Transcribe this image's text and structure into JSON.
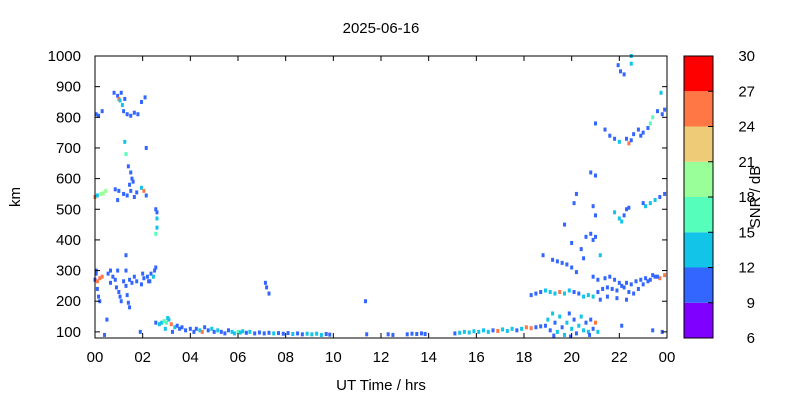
{
  "chart_data": {
    "type": "scatter",
    "title": "2025-06-16",
    "xlabel": "UT Time / hrs",
    "ylabel": "km",
    "xlim": [
      0,
      24
    ],
    "ylim": [
      80,
      1000
    ],
    "x_ticks": [
      "00",
      "02",
      "04",
      "06",
      "08",
      "10",
      "12",
      "14",
      "16",
      "18",
      "20",
      "22",
      "00"
    ],
    "y_ticks": [
      "100",
      "200",
      "300",
      "400",
      "500",
      "600",
      "700",
      "800",
      "900",
      "1000"
    ],
    "colorbar": {
      "label": "SNR / dB",
      "range": [
        6,
        30
      ],
      "ticks": [
        "6",
        "9",
        "12",
        "15",
        "18",
        "21",
        "24",
        "27",
        "30"
      ],
      "colors": [
        "#7f00ff",
        "#3366ff",
        "#12c4e8",
        "#55ffbb",
        "#99ff99",
        "#eecc77",
        "#ff7744",
        "#ff0000"
      ]
    },
    "points": [
      [
        0.0,
        540,
        26
      ],
      [
        0.1,
        545,
        12
      ],
      [
        0.25,
        550,
        18
      ],
      [
        0.45,
        560,
        18
      ],
      [
        0.35,
        552,
        20
      ],
      [
        0.05,
        810,
        10
      ],
      [
        0.15,
        805,
        10
      ],
      [
        0.3,
        820,
        10
      ],
      [
        0.8,
        880,
        10
      ],
      [
        0.95,
        870,
        10
      ],
      [
        1.0,
        860,
        26
      ],
      [
        1.05,
        855,
        12
      ],
      [
        1.15,
        840,
        12
      ],
      [
        1.2,
        820,
        10
      ],
      [
        1.35,
        810,
        10
      ],
      [
        1.5,
        805,
        10
      ],
      [
        1.65,
        815,
        10
      ],
      [
        1.8,
        810,
        10
      ],
      [
        1.95,
        850,
        10
      ],
      [
        2.1,
        865,
        10
      ],
      [
        1.1,
        880,
        10
      ],
      [
        1.25,
        860,
        10
      ],
      [
        1.25,
        720,
        14
      ],
      [
        1.3,
        680,
        16
      ],
      [
        1.4,
        640,
        10
      ],
      [
        1.5,
        620,
        10
      ],
      [
        1.55,
        600,
        10
      ],
      [
        2.15,
        700,
        10
      ],
      [
        0.85,
        565,
        10
      ],
      [
        1.0,
        560,
        10
      ],
      [
        1.2,
        550,
        10
      ],
      [
        1.35,
        545,
        10
      ],
      [
        1.5,
        560,
        10
      ],
      [
        1.65,
        540,
        10
      ],
      [
        1.75,
        555,
        10
      ],
      [
        1.95,
        570,
        14
      ],
      [
        2.05,
        560,
        26
      ],
      [
        2.15,
        545,
        10
      ],
      [
        1.45,
        580,
        10
      ],
      [
        1.6,
        590,
        10
      ],
      [
        0.95,
        530,
        10
      ],
      [
        2.55,
        500,
        10
      ],
      [
        2.6,
        470,
        14
      ],
      [
        2.6,
        440,
        12
      ],
      [
        2.55,
        420,
        16
      ],
      [
        2.6,
        490,
        10
      ],
      [
        0.0,
        270,
        10
      ],
      [
        0.05,
        290,
        10
      ],
      [
        0.1,
        265,
        26
      ],
      [
        0.2,
        275,
        26
      ],
      [
        0.3,
        280,
        26
      ],
      [
        0.15,
        215,
        10
      ],
      [
        0.2,
        200,
        10
      ],
      [
        0.1,
        240,
        10
      ],
      [
        0.05,
        300,
        10
      ],
      [
        0.55,
        290,
        10
      ],
      [
        0.65,
        300,
        10
      ],
      [
        0.75,
        280,
        10
      ],
      [
        0.85,
        270,
        10
      ],
      [
        0.95,
        300,
        10
      ],
      [
        0.65,
        260,
        10
      ],
      [
        0.9,
        245,
        10
      ],
      [
        1.0,
        230,
        10
      ],
      [
        1.05,
        215,
        10
      ],
      [
        1.1,
        200,
        10
      ],
      [
        1.2,
        265,
        10
      ],
      [
        1.3,
        250,
        10
      ],
      [
        1.35,
        220,
        10
      ],
      [
        1.4,
        195,
        10
      ],
      [
        1.45,
        180,
        10
      ],
      [
        1.3,
        350,
        10
      ],
      [
        1.3,
        300,
        10
      ],
      [
        1.45,
        270,
        10
      ],
      [
        1.55,
        260,
        10
      ],
      [
        1.65,
        280,
        10
      ],
      [
        1.75,
        265,
        10
      ],
      [
        1.95,
        255,
        10
      ],
      [
        2.05,
        275,
        10
      ],
      [
        2.25,
        265,
        10
      ],
      [
        2.35,
        290,
        10
      ],
      [
        2.45,
        280,
        14
      ],
      [
        2.5,
        300,
        10
      ],
      [
        2.55,
        310,
        10
      ],
      [
        2.2,
        280,
        10
      ],
      [
        2.3,
        265,
        10
      ],
      [
        2.0,
        290,
        10
      ],
      [
        0.5,
        140,
        10
      ],
      [
        0.4,
        90,
        10
      ],
      [
        1.9,
        100,
        10
      ],
      [
        2.55,
        130,
        10
      ],
      [
        2.7,
        125,
        14
      ],
      [
        2.8,
        130,
        14
      ],
      [
        2.9,
        135,
        16
      ],
      [
        3.0,
        130,
        16
      ],
      [
        3.1,
        140,
        14
      ],
      [
        3.2,
        125,
        26
      ],
      [
        3.35,
        115,
        14
      ],
      [
        3.45,
        120,
        10
      ],
      [
        3.05,
        145,
        14
      ],
      [
        2.95,
        110,
        14
      ],
      [
        3.25,
        100,
        10
      ],
      [
        3.55,
        110,
        10
      ],
      [
        3.65,
        115,
        10
      ],
      [
        3.8,
        105,
        10
      ],
      [
        4.0,
        110,
        10
      ],
      [
        4.15,
        100,
        10
      ],
      [
        4.25,
        110,
        10
      ],
      [
        4.4,
        105,
        14
      ],
      [
        4.5,
        100,
        26
      ],
      [
        4.6,
        115,
        10
      ],
      [
        4.75,
        105,
        10
      ],
      [
        4.9,
        110,
        12
      ],
      [
        5.0,
        100,
        10
      ],
      [
        5.15,
        105,
        12
      ],
      [
        5.3,
        100,
        10
      ],
      [
        5.45,
        95,
        10
      ],
      [
        5.6,
        105,
        10
      ],
      [
        5.75,
        100,
        14
      ],
      [
        5.85,
        95,
        12
      ],
      [
        6.0,
        100,
        16
      ],
      [
        6.1,
        98,
        14
      ],
      [
        6.2,
        102,
        12
      ],
      [
        6.35,
        97,
        10
      ],
      [
        6.5,
        100,
        12
      ],
      [
        6.7,
        95,
        10
      ],
      [
        6.9,
        98,
        10
      ],
      [
        7.1,
        95,
        10
      ],
      [
        7.3,
        97,
        10
      ],
      [
        7.5,
        95,
        12
      ],
      [
        7.7,
        96,
        10
      ],
      [
        7.9,
        94,
        10
      ],
      [
        8.1,
        96,
        10
      ],
      [
        8.3,
        93,
        12
      ],
      [
        8.5,
        95,
        10
      ],
      [
        8.7,
        92,
        10
      ],
      [
        8.9,
        94,
        12
      ],
      [
        9.1,
        92,
        14
      ],
      [
        9.3,
        94,
        12
      ],
      [
        9.5,
        90,
        12
      ],
      [
        9.7,
        93,
        10
      ],
      [
        9.85,
        91,
        10
      ],
      [
        7.15,
        260,
        10
      ],
      [
        7.2,
        245,
        10
      ],
      [
        7.3,
        225,
        10
      ],
      [
        11.35,
        200,
        10
      ],
      [
        11.4,
        92,
        10
      ],
      [
        12.3,
        92,
        10
      ],
      [
        12.5,
        90,
        10
      ],
      [
        13.1,
        92,
        10
      ],
      [
        13.3,
        94,
        10
      ],
      [
        13.5,
        93,
        10
      ],
      [
        13.7,
        95,
        10
      ],
      [
        13.85,
        93,
        10
      ],
      [
        15.1,
        95,
        10
      ],
      [
        15.3,
        97,
        14
      ],
      [
        15.5,
        100,
        12
      ],
      [
        15.7,
        98,
        14
      ],
      [
        15.9,
        102,
        12
      ],
      [
        16.1,
        100,
        14
      ],
      [
        16.3,
        105,
        12
      ],
      [
        16.5,
        100,
        14
      ],
      [
        16.7,
        105,
        10
      ],
      [
        16.9,
        103,
        26
      ],
      [
        17.1,
        108,
        12
      ],
      [
        17.3,
        103,
        14
      ],
      [
        17.5,
        110,
        12
      ],
      [
        17.7,
        105,
        10
      ],
      [
        17.9,
        110,
        14
      ],
      [
        18.1,
        115,
        26
      ],
      [
        18.3,
        112,
        26
      ],
      [
        18.5,
        115,
        10
      ],
      [
        18.7,
        118,
        10
      ],
      [
        18.9,
        120,
        10
      ],
      [
        19.0,
        140,
        12
      ],
      [
        19.1,
        105,
        10
      ],
      [
        19.2,
        160,
        12
      ],
      [
        19.3,
        130,
        10
      ],
      [
        19.4,
        100,
        14
      ],
      [
        19.5,
        150,
        12
      ],
      [
        19.6,
        115,
        10
      ],
      [
        19.7,
        90,
        12
      ],
      [
        19.8,
        130,
        12
      ],
      [
        19.9,
        160,
        10
      ],
      [
        20.0,
        110,
        12
      ],
      [
        20.1,
        140,
        10
      ],
      [
        20.2,
        95,
        10
      ],
      [
        20.3,
        120,
        12
      ],
      [
        20.4,
        150,
        12
      ],
      [
        20.5,
        105,
        14
      ],
      [
        20.6,
        130,
        10
      ],
      [
        20.7,
        100,
        12
      ],
      [
        20.8,
        140,
        10
      ],
      [
        20.9,
        110,
        10
      ],
      [
        21.0,
        130,
        26
      ],
      [
        21.1,
        100,
        12
      ],
      [
        20.75,
        90,
        10
      ],
      [
        19.95,
        85,
        10
      ],
      [
        19.25,
        88,
        10
      ],
      [
        18.3,
        220,
        10
      ],
      [
        18.5,
        225,
        10
      ],
      [
        18.7,
        230,
        10
      ],
      [
        18.9,
        235,
        14
      ],
      [
        19.1,
        230,
        14
      ],
      [
        19.3,
        225,
        14
      ],
      [
        19.5,
        230,
        26
      ],
      [
        19.7,
        225,
        14
      ],
      [
        19.9,
        235,
        14
      ],
      [
        20.1,
        230,
        10
      ],
      [
        20.3,
        225,
        10
      ],
      [
        20.5,
        215,
        14
      ],
      [
        20.7,
        220,
        14
      ],
      [
        20.9,
        215,
        14
      ],
      [
        21.1,
        230,
        10
      ],
      [
        21.3,
        240,
        10
      ],
      [
        21.5,
        245,
        10
      ],
      [
        21.7,
        240,
        10
      ],
      [
        21.9,
        235,
        10
      ],
      [
        22.1,
        250,
        10
      ],
      [
        22.3,
        260,
        10
      ],
      [
        22.5,
        255,
        10
      ],
      [
        22.7,
        265,
        10
      ],
      [
        22.9,
        270,
        10
      ],
      [
        23.1,
        275,
        10
      ],
      [
        23.3,
        270,
        10
      ],
      [
        23.5,
        280,
        10
      ],
      [
        23.7,
        275,
        26
      ],
      [
        23.9,
        285,
        26
      ],
      [
        20.9,
        280,
        10
      ],
      [
        21.1,
        270,
        10
      ],
      [
        21.4,
        275,
        10
      ],
      [
        21.6,
        280,
        10
      ],
      [
        21.8,
        270,
        10
      ],
      [
        22.0,
        260,
        10
      ],
      [
        22.2,
        245,
        10
      ],
      [
        22.4,
        230,
        10
      ],
      [
        22.6,
        225,
        10
      ],
      [
        22.8,
        240,
        10
      ],
      [
        23.0,
        255,
        10
      ],
      [
        23.2,
        265,
        10
      ],
      [
        23.4,
        285,
        10
      ],
      [
        23.6,
        280,
        10
      ],
      [
        21.2,
        205,
        10
      ],
      [
        21.5,
        215,
        10
      ],
      [
        21.9,
        210,
        10
      ],
      [
        22.3,
        205,
        10
      ],
      [
        18.8,
        350,
        10
      ],
      [
        19.2,
        335,
        10
      ],
      [
        19.4,
        330,
        10
      ],
      [
        19.6,
        325,
        10
      ],
      [
        19.8,
        320,
        10
      ],
      [
        20.0,
        310,
        10
      ],
      [
        20.2,
        295,
        10
      ],
      [
        20.4,
        370,
        10
      ],
      [
        20.5,
        340,
        10
      ],
      [
        20.0,
        390,
        10
      ],
      [
        20.6,
        410,
        10
      ],
      [
        20.8,
        420,
        10
      ],
      [
        20.9,
        400,
        10
      ],
      [
        21.0,
        410,
        10
      ],
      [
        21.2,
        350,
        14
      ],
      [
        21.0,
        480,
        10
      ],
      [
        19.7,
        450,
        10
      ],
      [
        20.1,
        520,
        10
      ],
      [
        20.2,
        550,
        10
      ],
      [
        20.8,
        620,
        10
      ],
      [
        21.0,
        610,
        10
      ],
      [
        20.9,
        510,
        10
      ],
      [
        21.8,
        490,
        14
      ],
      [
        22.0,
        470,
        14
      ],
      [
        22.2,
        480,
        10
      ],
      [
        22.3,
        500,
        10
      ],
      [
        22.4,
        505,
        10
      ],
      [
        22.1,
        460,
        14
      ],
      [
        23.1,
        510,
        14
      ],
      [
        23.3,
        520,
        14
      ],
      [
        23.5,
        530,
        14
      ],
      [
        23.7,
        540,
        10
      ],
      [
        23.9,
        550,
        10
      ],
      [
        23.0,
        520,
        10
      ],
      [
        21.0,
        780,
        10
      ],
      [
        21.4,
        760,
        10
      ],
      [
        21.6,
        740,
        10
      ],
      [
        21.8,
        730,
        10
      ],
      [
        22.0,
        720,
        14
      ],
      [
        22.3,
        730,
        10
      ],
      [
        22.4,
        715,
        26
      ],
      [
        22.5,
        725,
        10
      ],
      [
        22.6,
        745,
        10
      ],
      [
        22.8,
        760,
        10
      ],
      [
        22.9,
        740,
        10
      ],
      [
        23.0,
        750,
        10
      ],
      [
        23.2,
        765,
        10
      ],
      [
        23.3,
        780,
        16
      ],
      [
        23.4,
        800,
        16
      ],
      [
        23.6,
        820,
        10
      ],
      [
        23.8,
        810,
        10
      ],
      [
        23.9,
        825,
        10
      ],
      [
        23.75,
        880,
        14
      ],
      [
        21.95,
        970,
        10
      ],
      [
        22.05,
        950,
        10
      ],
      [
        22.2,
        940,
        10
      ],
      [
        22.5,
        975,
        14
      ],
      [
        22.5,
        1000,
        14
      ],
      [
        23.8,
        100,
        10
      ],
      [
        23.4,
        105,
        10
      ],
      [
        22.1,
        120,
        10
      ]
    ]
  }
}
